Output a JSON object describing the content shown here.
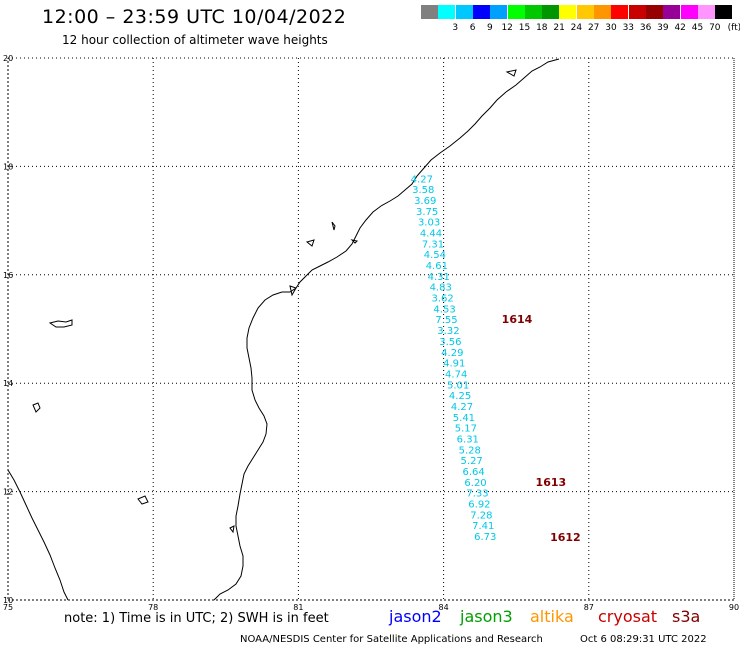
{
  "header": {
    "title": "12:00 – 23:59 UTC 10/04/2022",
    "subtitle": "12 hour collection of altimeter wave heights"
  },
  "legend": {
    "unit": "(ft)",
    "items": [
      {
        "label": "",
        "color": "#808080"
      },
      {
        "label": "3",
        "color": "#00ffff"
      },
      {
        "label": "6",
        "color": "#00c8ff"
      },
      {
        "label": "9",
        "color": "#0000ff"
      },
      {
        "label": "12",
        "color": "#00a0ff"
      },
      {
        "label": "15",
        "color": "#00ff00"
      },
      {
        "label": "18",
        "color": "#00c800"
      },
      {
        "label": "21",
        "color": "#009600"
      },
      {
        "label": "24",
        "color": "#ffff00"
      },
      {
        "label": "27",
        "color": "#ffc800"
      },
      {
        "label": "30",
        "color": "#ff9600"
      },
      {
        "label": "33",
        "color": "#ff0000"
      },
      {
        "label": "36",
        "color": "#c80000"
      },
      {
        "label": "39",
        "color": "#960000"
      },
      {
        "label": "42",
        "color": "#960096"
      },
      {
        "label": "45",
        "color": "#ff00ff"
      },
      {
        "label": "70",
        "color": "#ff96ff"
      },
      {
        "label": "",
        "color": "#000000"
      }
    ]
  },
  "map": {
    "lon_ticks": [
      "75",
      "78",
      "81",
      "84",
      "87",
      "90"
    ],
    "lat_ticks": [
      "20",
      "18",
      "16",
      "14",
      "12",
      "10"
    ],
    "wave_color": "#00c8e6",
    "pass_color": "#800000",
    "wave_heights": [
      {
        "v": "4.27",
        "lon": 83.55,
        "lat": 17.78
      },
      {
        "v": "3.58",
        "lon": 83.58,
        "lat": 17.58
      },
      {
        "v": "3.69",
        "lon": 83.62,
        "lat": 17.38
      },
      {
        "v": "3.75",
        "lon": 83.66,
        "lat": 17.18
      },
      {
        "v": "3.03",
        "lon": 83.7,
        "lat": 16.98
      },
      {
        "v": "4.44",
        "lon": 83.74,
        "lat": 16.78
      },
      {
        "v": "7.31",
        "lon": 83.78,
        "lat": 16.58
      },
      {
        "v": "4.54",
        "lon": 83.82,
        "lat": 16.38
      },
      {
        "v": "4.61",
        "lon": 83.86,
        "lat": 16.18
      },
      {
        "v": "4.31",
        "lon": 83.9,
        "lat": 15.98
      },
      {
        "v": "4.83",
        "lon": 83.94,
        "lat": 15.78
      },
      {
        "v": "3.62",
        "lon": 83.98,
        "lat": 15.58
      },
      {
        "v": "4.53",
        "lon": 84.02,
        "lat": 15.38
      },
      {
        "v": "7.55",
        "lon": 84.06,
        "lat": 15.18
      },
      {
        "v": "3.32",
        "lon": 84.1,
        "lat": 14.98
      },
      {
        "v": "3.56",
        "lon": 84.14,
        "lat": 14.78
      },
      {
        "v": "4.29",
        "lon": 84.18,
        "lat": 14.58
      },
      {
        "v": "4.91",
        "lon": 84.22,
        "lat": 14.38
      },
      {
        "v": "4.74",
        "lon": 84.26,
        "lat": 14.18
      },
      {
        "v": "5.01",
        "lon": 84.3,
        "lat": 13.98
      },
      {
        "v": "4.25",
        "lon": 84.34,
        "lat": 13.78
      },
      {
        "v": "4.27",
        "lon": 84.38,
        "lat": 13.58
      },
      {
        "v": "5.41",
        "lon": 84.42,
        "lat": 13.38
      },
      {
        "v": "5.17",
        "lon": 84.46,
        "lat": 13.18
      },
      {
        "v": "6.31",
        "lon": 84.5,
        "lat": 12.98
      },
      {
        "v": "5.28",
        "lon": 84.54,
        "lat": 12.78
      },
      {
        "v": "5.27",
        "lon": 84.58,
        "lat": 12.58
      },
      {
        "v": "6.64",
        "lon": 84.62,
        "lat": 12.38
      },
      {
        "v": "6.20",
        "lon": 84.66,
        "lat": 12.18
      },
      {
        "v": "7.33",
        "lon": 84.7,
        "lat": 11.98
      },
      {
        "v": "6.92",
        "lon": 84.74,
        "lat": 11.78
      },
      {
        "v": "7.28",
        "lon": 84.78,
        "lat": 11.58
      },
      {
        "v": "7.41",
        "lon": 84.82,
        "lat": 11.38
      },
      {
        "v": "6.73",
        "lon": 84.86,
        "lat": 11.18
      }
    ],
    "pass_labels": [
      {
        "v": "1614",
        "lon": 85.2,
        "lat": 15.18
      },
      {
        "v": "1613",
        "lon": 85.9,
        "lat": 12.18
      },
      {
        "v": "1612",
        "lon": 86.2,
        "lat": 11.16
      }
    ]
  },
  "footer": {
    "note": "note: 1) Time is in UTC; 2) SWH is in feet",
    "satellites": [
      {
        "name": "jason2",
        "color": "#0000ff"
      },
      {
        "name": "jason3",
        "color": "#00a000"
      },
      {
        "name": "altika",
        "color": "#ff9600"
      },
      {
        "name": "cryosat",
        "color": "#c80000"
      },
      {
        "name": "s3a",
        "color": "#800000"
      }
    ],
    "credit": "NOAA/NESDIS Center for Satellite Applications and Research",
    "timestamp": "Oct  6 08:29:31 UTC 2022"
  }
}
